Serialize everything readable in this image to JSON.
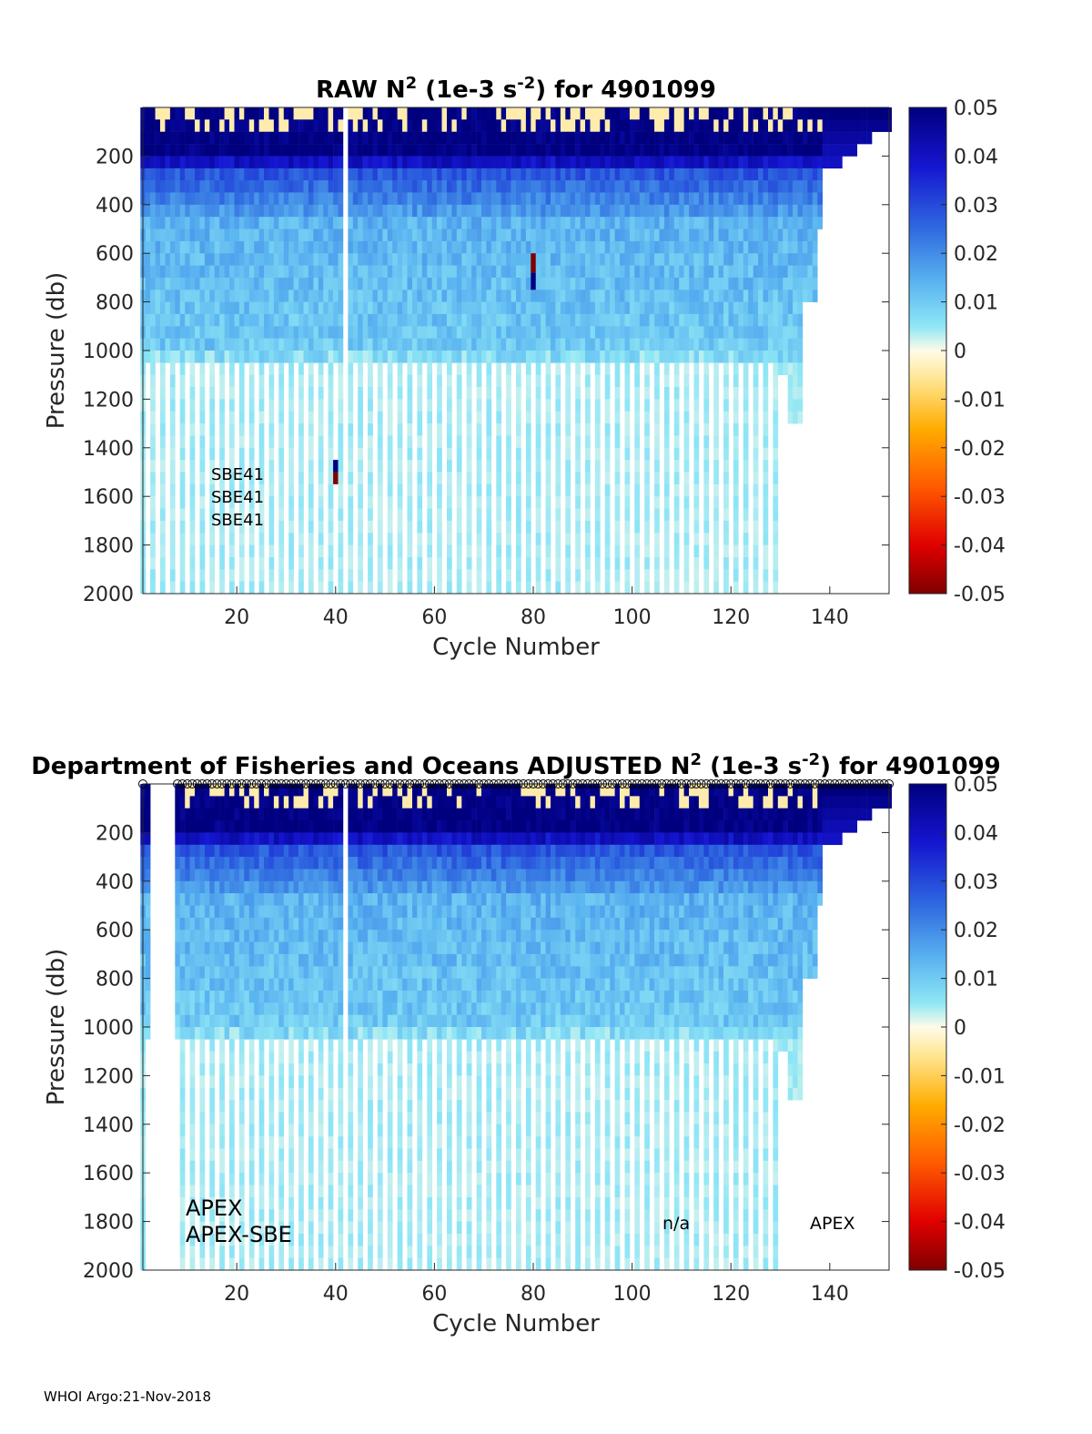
{
  "footer": "WHOI Argo:21-Nov-2018",
  "chart_data": [
    {
      "type": "heatmap",
      "title": "RAW N² (1e-3 s⁻²) for 4901099",
      "title_parts": {
        "pre": "RAW N",
        "sup1": "2",
        "mid": " (1e-3 s",
        "sup2": "-2",
        "post": ") for 4901099"
      },
      "xlabel": "Cycle Number",
      "ylabel": "Pressure (db)",
      "xlim": [
        1,
        152
      ],
      "ylim": [
        2000,
        0
      ],
      "xticks": [
        "20",
        "40",
        "60",
        "80",
        "100",
        "120",
        "140"
      ],
      "yticks": [
        "200",
        "400",
        "600",
        "800",
        "1000",
        "1200",
        "1400",
        "1600",
        "1800",
        "2000"
      ],
      "colorbar": {
        "min": -0.05,
        "max": 0.05,
        "ticks": [
          "0.05",
          "0.04",
          "0.03",
          "0.02",
          "0.01",
          "0",
          "-0.01",
          "-0.02",
          "-0.03",
          "-0.04",
          "-0.05"
        ]
      },
      "annotations": [
        "SBE41",
        "SBE41",
        "SBE41"
      ],
      "cycles_with_data": [
        1,
        138
      ],
      "deep_profiles_end_cycle": 129,
      "anomalies": [
        {
          "cycle": 80,
          "pressure_range": [
            600,
            680
          ],
          "value": -0.05
        },
        {
          "cycle": 80,
          "pressure_range": [
            680,
            750
          ],
          "value": 0.05
        },
        {
          "cycle": 40,
          "pressure_range": [
            1450,
            1500
          ],
          "value": 0.05
        },
        {
          "cycle": 40,
          "pressure_range": [
            1500,
            1550
          ],
          "value": -0.05
        }
      ]
    },
    {
      "type": "heatmap",
      "title": "Department of Fisheries and Oceans  ADJUSTED N² (1e-3 s⁻²) for 4901099",
      "title_parts": {
        "pre": "Department of Fisheries and Oceans  ADJUSTED N",
        "sup1": "2",
        "mid": " (1e-3 s",
        "sup2": "-2",
        "post": ") for 4901099"
      },
      "xlabel": "Cycle Number",
      "ylabel": "Pressure (db)",
      "xlim": [
        1,
        152
      ],
      "ylim": [
        2000,
        0
      ],
      "xticks": [
        "20",
        "40",
        "60",
        "80",
        "100",
        "120",
        "140"
      ],
      "yticks": [
        "200",
        "400",
        "600",
        "800",
        "1000",
        "1200",
        "1400",
        "1600",
        "1800",
        "2000"
      ],
      "colorbar": {
        "min": -0.05,
        "max": 0.05,
        "ticks": [
          "0.05",
          "0.04",
          "0.03",
          "0.02",
          "0.01",
          "0",
          "-0.01",
          "-0.02",
          "-0.03",
          "-0.04",
          "-0.05"
        ]
      },
      "annotations": [
        "APEX",
        "APEX-SBE",
        "n/a",
        "APEX"
      ],
      "cycles_with_data": [
        1,
        138
      ],
      "deep_profiles_end_cycle": 129,
      "missing_cycle_gap": [
        3,
        7
      ]
    }
  ]
}
